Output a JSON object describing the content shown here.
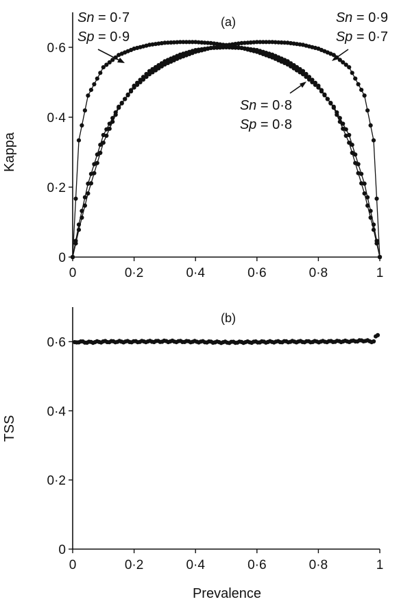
{
  "chart_data": [
    {
      "type": "line",
      "panel_label": "(a)",
      "xlabel": "",
      "ylabel": "Kappa",
      "xlim": [
        0,
        1
      ],
      "ylim": [
        0,
        0.7
      ],
      "x_ticks": [
        "0",
        "0·2",
        "0·4",
        "0·6",
        "0·8",
        "1"
      ],
      "y_ticks": [
        "0",
        "0·2",
        "0·4",
        "0·6"
      ],
      "grid": false,
      "series": [
        {
          "id": "sn07_sp09",
          "sn": 0.7,
          "sp": 0.9,
          "x": [
            0.0,
            0.02,
            0.05,
            0.1,
            0.15,
            0.2,
            0.25,
            0.3,
            0.35,
            0.4,
            0.45,
            0.5,
            0.55,
            0.6,
            0.65,
            0.7,
            0.75,
            0.8,
            0.85,
            0.9,
            0.95,
            0.98,
            1.0
          ],
          "y": [
            0.0,
            0.334,
            0.462,
            0.543,
            0.578,
            0.596,
            0.607,
            0.613,
            0.615,
            0.615,
            0.612,
            0.606,
            0.598,
            0.587,
            0.571,
            0.551,
            0.523,
            0.485,
            0.43,
            0.349,
            0.21,
            0.093,
            0.0
          ]
        },
        {
          "id": "sn08_sp08",
          "sn": 0.8,
          "sp": 0.8,
          "x": [
            0.0,
            0.02,
            0.05,
            0.1,
            0.15,
            0.2,
            0.25,
            0.3,
            0.35,
            0.4,
            0.45,
            0.5,
            0.55,
            0.6,
            0.65,
            0.7,
            0.75,
            0.8,
            0.85,
            0.9,
            0.95,
            0.98,
            1.0
          ],
          "y": [
            0.0,
            0.078,
            0.182,
            0.327,
            0.427,
            0.49,
            0.532,
            0.56,
            0.579,
            0.592,
            0.598,
            0.6,
            0.598,
            0.592,
            0.579,
            0.56,
            0.532,
            0.49,
            0.427,
            0.327,
            0.182,
            0.078,
            0.0
          ]
        },
        {
          "id": "sn09_sp07",
          "sn": 0.9,
          "sp": 0.7,
          "x": [
            0.0,
            0.02,
            0.05,
            0.1,
            0.15,
            0.2,
            0.25,
            0.3,
            0.35,
            0.4,
            0.45,
            0.5,
            0.55,
            0.6,
            0.65,
            0.7,
            0.75,
            0.8,
            0.85,
            0.9,
            0.95,
            0.98,
            1.0
          ],
          "y": [
            0.0,
            0.093,
            0.21,
            0.349,
            0.43,
            0.485,
            0.523,
            0.551,
            0.571,
            0.587,
            0.598,
            0.606,
            0.612,
            0.615,
            0.615,
            0.613,
            0.607,
            0.596,
            0.578,
            0.543,
            0.462,
            0.334,
            0.0
          ]
        }
      ],
      "annotations": [
        {
          "id": "a1",
          "l1_var": "Sn",
          "l1_val": " = 0·7",
          "l2_var": "Sp",
          "l2_val": " = 0·9"
        },
        {
          "id": "a2",
          "l1_var": "Sn",
          "l1_val": " = 0·9",
          "l2_var": "Sp",
          "l2_val": " = 0·7"
        },
        {
          "id": "a3",
          "l1_var": "Sn",
          "l1_val": " = 0·8",
          "l2_var": "Sp",
          "l2_val": " = 0·8"
        }
      ]
    },
    {
      "type": "scatter",
      "panel_label": "(b)",
      "xlabel": "Prevalence",
      "ylabel": "TSS",
      "xlim": [
        0,
        1
      ],
      "ylim": [
        0,
        0.7
      ],
      "x_ticks": [
        "0",
        "0·2",
        "0·4",
        "0·6",
        "0·8",
        "1"
      ],
      "y_ticks": [
        "0",
        "0·2",
        "0·4",
        "0·6"
      ],
      "grid": false,
      "series": [
        {
          "id": "tss",
          "x": [
            0.0,
            0.02,
            0.05,
            0.1,
            0.2,
            0.3,
            0.4,
            0.5,
            0.6,
            0.7,
            0.8,
            0.9,
            0.95,
            0.98,
            0.99
          ],
          "y": [
            0.595,
            0.6,
            0.598,
            0.6,
            0.6,
            0.601,
            0.6,
            0.598,
            0.599,
            0.6,
            0.6,
            0.601,
            0.603,
            0.6,
            0.62
          ]
        }
      ]
    }
  ]
}
